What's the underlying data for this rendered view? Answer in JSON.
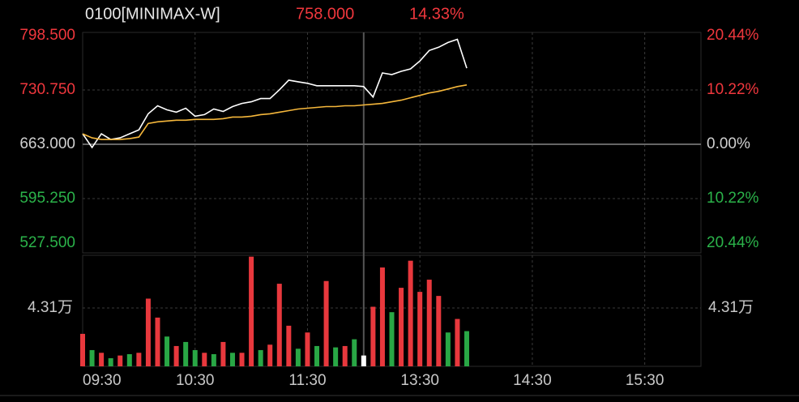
{
  "header": {
    "title": "0100[MINIMAX-W]",
    "last_price": "758.000",
    "change_pct": "14.33%"
  },
  "chart_data": [
    {
      "type": "line",
      "ylim": [
        527.5,
        798.5
      ],
      "yticks": [
        {
          "value": 798.5,
          "label": "798.500"
        },
        {
          "value": 730.75,
          "label": "730.750"
        },
        {
          "value": 663,
          "label": "663.000"
        },
        {
          "value": 595.25,
          "label": "595.250"
        },
        {
          "value": 527.5,
          "label": "527.500"
        }
      ],
      "y2lim": [
        -20.44,
        20.44
      ],
      "y2ticks": [
        {
          "value": 20.44,
          "label": "20.44%"
        },
        {
          "value": 10.22,
          "label": "10.22%"
        },
        {
          "value": 0,
          "label": "0.00%"
        },
        {
          "value": -10.22,
          "label": "10.22%"
        },
        {
          "value": -20.44,
          "label": "20.44%"
        }
      ],
      "up_color": "#f0373d",
      "down_color": "#2bb34a",
      "flat_color": "#d0d0d0",
      "series": [
        {
          "color": "#ffffff",
          "values": [
            676,
            659,
            676,
            669,
            671,
            676,
            681,
            701,
            711,
            706,
            703,
            708,
            698,
            700,
            707,
            704,
            710,
            714,
            716,
            720,
            720,
            731,
            743,
            741,
            739,
            736,
            736,
            736,
            736,
            736,
            735,
            722,
            752,
            750,
            754,
            757,
            767,
            780,
            784,
            790,
            794,
            758,
            null,
            null,
            null,
            null,
            null,
            null,
            null,
            null,
            null,
            null,
            null,
            null,
            null,
            null,
            null,
            null,
            null,
            null,
            null,
            null,
            null,
            null,
            null,
            null,
            null
          ]
        },
        {
          "color": "#f5b73b",
          "values": [
            676,
            671,
            669,
            669,
            669,
            670,
            672,
            689,
            691,
            692,
            693,
            693,
            694,
            694,
            694,
            695,
            697,
            697,
            698,
            700,
            701,
            703,
            705,
            707,
            708,
            709,
            710,
            710,
            711,
            711,
            712,
            713,
            714,
            716,
            718,
            721,
            724,
            727,
            729,
            732,
            735,
            737,
            null,
            null,
            null,
            null,
            null,
            null,
            null,
            null,
            null,
            null,
            null,
            null,
            null,
            null,
            null,
            null,
            null,
            null,
            null,
            null,
            null,
            null,
            null,
            null,
            null
          ]
        }
      ]
    },
    {
      "type": "bar",
      "categories": [
        "09:30",
        null,
        null,
        null,
        null,
        null,
        null,
        null,
        null,
        null,
        null,
        null,
        "10:30",
        null,
        null,
        null,
        null,
        null,
        null,
        null,
        null,
        null,
        null,
        null,
        "11:30",
        null,
        null,
        null,
        null,
        null,
        null,
        null,
        null,
        null,
        null,
        null,
        "13:30",
        null,
        null,
        null,
        null,
        null,
        null,
        null,
        null,
        null,
        null,
        null,
        "14:30",
        null,
        null,
        null,
        null,
        null,
        null,
        null,
        null,
        null,
        null,
        null,
        "15:30",
        null,
        null,
        null,
        null,
        null,
        null
      ],
      "ylim": [
        0,
        8.2
      ],
      "yticks": [
        {
          "value": 4.31,
          "label": "4.31万"
        }
      ],
      "values": [
        2.4,
        1.2,
        1.0,
        0.6,
        0.8,
        0.9,
        1.0,
        5.0,
        3.6,
        2.2,
        1.5,
        1.8,
        1.2,
        1.0,
        0.9,
        1.8,
        1.0,
        1.0,
        8.1,
        1.2,
        1.6,
        6.1,
        3.0,
        1.3,
        2.5,
        1.5,
        6.3,
        1.4,
        1.5,
        2.0,
        0.8,
        4.4,
        7.3,
        4.0,
        5.8,
        7.8,
        5.5,
        6.4,
        5.2,
        2.5,
        3.5,
        2.6,
        null,
        null,
        null,
        null,
        null,
        null,
        null,
        null,
        null,
        null,
        null,
        null,
        null,
        null,
        null,
        null,
        null,
        null,
        null,
        null,
        null,
        null,
        null,
        null,
        null
      ],
      "colors": [
        "#e8383d",
        "#29a745",
        "#e8383d",
        "#29a745",
        "#e8383d",
        "#29a745",
        "#e8383d",
        "#e8383d",
        "#e8383d",
        "#29a745",
        "#e8383d",
        "#29a745",
        "#29a745",
        "#e8383d",
        "#29a745",
        "#e8383d",
        "#29a745",
        "#e8383d",
        "#e8383d",
        "#29a745",
        "#e8383d",
        "#e8383d",
        "#e8383d",
        "#29a745",
        "#e8383d",
        "#29a745",
        "#e8383d",
        "#29a745",
        "#e8383d",
        "#29a745",
        "#ffffff",
        "#e8383d",
        "#e8383d",
        "#29a745",
        "#e8383d",
        "#e8383d",
        "#e8383d",
        "#e8383d",
        "#e8383d",
        "#29a745",
        "#e8383d",
        "#29a745",
        null,
        null,
        null,
        null,
        null,
        null,
        null,
        null,
        null,
        null,
        null,
        null,
        null,
        null,
        null,
        null,
        null,
        null,
        null,
        null,
        null,
        null,
        null,
        null,
        null
      ]
    }
  ]
}
